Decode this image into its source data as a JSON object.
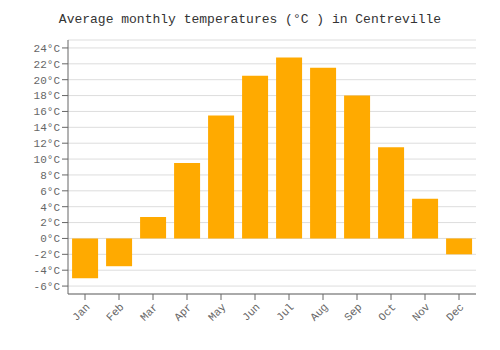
{
  "chart_data": {
    "type": "bar",
    "title": "Average monthly temperatures (°C ) in Centreville",
    "categories": [
      "Jan",
      "Feb",
      "Mar",
      "Apr",
      "May",
      "Jun",
      "Jul",
      "Aug",
      "Sep",
      "Oct",
      "Nov",
      "Dec"
    ],
    "values": [
      -5.0,
      -3.5,
      2.7,
      9.5,
      15.5,
      20.5,
      22.8,
      21.5,
      18.0,
      11.5,
      5.0,
      -2.0
    ],
    "color": "#FFAA00",
    "ylim": [
      -7,
      25
    ],
    "yticks": [
      {
        "value": -6,
        "label": "-6°C"
      },
      {
        "value": -4,
        "label": "-4°C"
      },
      {
        "value": -2,
        "label": "-2°C"
      },
      {
        "value": 0,
        "label": "0°C"
      },
      {
        "value": 2,
        "label": "2°C"
      },
      {
        "value": 4,
        "label": "4°C"
      },
      {
        "value": 6,
        "label": "6°C"
      },
      {
        "value": 8,
        "label": "8°C"
      },
      {
        "value": 10,
        "label": "10°C"
      },
      {
        "value": 12,
        "label": "12°C"
      },
      {
        "value": 14,
        "label": "14°C"
      },
      {
        "value": 16,
        "label": "16°C"
      },
      {
        "value": 18,
        "label": "18°C"
      },
      {
        "value": 20,
        "label": "20°C"
      },
      {
        "value": 22,
        "label": "22°C"
      },
      {
        "value": 24,
        "label": "24°C"
      }
    ],
    "grid": true
  }
}
